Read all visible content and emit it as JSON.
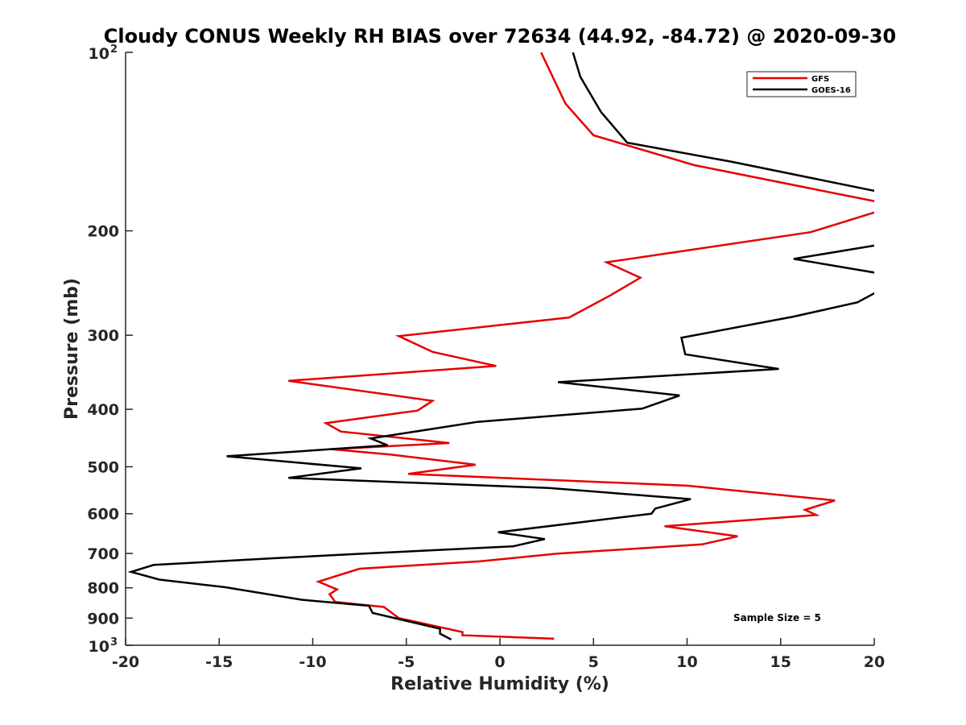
{
  "chart_data": {
    "type": "line",
    "title": "Cloudy CONUS Weekly RH BIAS over 72634 (44.92, -84.72) @ 2020-09-30",
    "xlabel": "Relative Humidity (%)",
    "ylabel": "Pressure (mb)",
    "xlim": [
      -20,
      20
    ],
    "ylim": [
      100,
      1000
    ],
    "y_scale": "log",
    "y_reversed": true,
    "grid": false,
    "x_ticks": [
      "-20",
      "-15",
      "-10",
      "-5",
      "0",
      "5",
      "10",
      "15",
      "20"
    ],
    "y_ticks": [
      {
        "value": 100,
        "base": "10",
        "exp": "2"
      },
      {
        "value": 200,
        "label": "200"
      },
      {
        "value": 300,
        "label": "300"
      },
      {
        "value": 400,
        "label": "400"
      },
      {
        "value": 500,
        "label": "500"
      },
      {
        "value": 600,
        "label": "600"
      },
      {
        "value": 700,
        "label": "700"
      },
      {
        "value": 800,
        "label": "800"
      },
      {
        "value": 900,
        "label": "900"
      },
      {
        "value": 1000,
        "base": "10",
        "exp": "3"
      }
    ],
    "legend": {
      "placement": "top-right"
    },
    "annotation": "Sample Size = 5",
    "series": [
      {
        "name": "GFS",
        "color": "#e60000",
        "points": [
          [
            2.9,
            975
          ],
          [
            -2,
            962
          ],
          [
            -2,
            950
          ],
          [
            -5.4,
            900
          ],
          [
            -6.2,
            862
          ],
          [
            -8.8,
            845
          ],
          [
            -9.1,
            820
          ],
          [
            -8.7,
            805
          ],
          [
            -9.7,
            781
          ],
          [
            -7.5,
            743
          ],
          [
            -1.1,
            722
          ],
          [
            3.0,
            701
          ],
          [
            10.8,
            676
          ],
          [
            12.7,
            655
          ],
          [
            8.8,
            630
          ],
          [
            16.9,
            603
          ],
          [
            16.3,
            591
          ],
          [
            17.9,
            570
          ],
          [
            10.0,
            538
          ],
          [
            -4.9,
            514
          ],
          [
            -1.3,
            496
          ],
          [
            -5.8,
            477
          ],
          [
            -9.0,
            467
          ],
          [
            -2.7,
            456
          ],
          [
            -8.5,
            436
          ],
          [
            -9.3,
            422
          ],
          [
            -4.4,
            402
          ],
          [
            -3.6,
            387
          ],
          [
            -11.3,
            358
          ],
          [
            -0.2,
            338
          ],
          [
            -3.6,
            320
          ],
          [
            -5.4,
            301
          ],
          [
            3.7,
            280
          ],
          [
            5.9,
            257
          ],
          [
            7.5,
            240
          ],
          [
            5.7,
            226
          ],
          [
            16.6,
            201
          ],
          [
            20.3,
            185
          ],
          [
            20.3,
            179
          ],
          [
            10.4,
            155
          ],
          [
            5.0,
            138
          ],
          [
            3.5,
            122
          ],
          [
            2.2,
            100
          ]
        ]
      },
      {
        "name": "GOES-16",
        "color": "#000000",
        "points": [
          [
            -2.6,
            978
          ],
          [
            -3.2,
            956
          ],
          [
            -3.2,
            938
          ],
          [
            -6.8,
            882
          ],
          [
            -7.0,
            858
          ],
          [
            -10.6,
            838
          ],
          [
            -14.7,
            798
          ],
          [
            -18.2,
            775
          ],
          [
            -19.7,
            752
          ],
          [
            -18.5,
            732
          ],
          [
            -12.0,
            713
          ],
          [
            -7.4,
            701
          ],
          [
            0.7,
            681
          ],
          [
            2.4,
            662
          ],
          [
            -0.1,
            645
          ],
          [
            4.7,
            618
          ],
          [
            8.1,
            600
          ],
          [
            8.3,
            588
          ],
          [
            10.2,
            567
          ],
          [
            2.6,
            543
          ],
          [
            -11.3,
            522
          ],
          [
            -7.4,
            503
          ],
          [
            -14.6,
            480
          ],
          [
            -6.0,
            460
          ],
          [
            -6.9,
            448
          ],
          [
            -1.2,
            420
          ],
          [
            7.6,
            399
          ],
          [
            9.6,
            379
          ],
          [
            3.1,
            360
          ],
          [
            14.9,
            342
          ],
          [
            9.9,
            323
          ],
          [
            9.7,
            303
          ],
          [
            15.7,
            279
          ],
          [
            19.1,
            264
          ],
          [
            20.3,
            252
          ],
          [
            20.3,
            236
          ],
          [
            15.7,
            223
          ],
          [
            20.3,
            211
          ],
          [
            20.3,
            172
          ],
          [
            12.4,
            153
          ],
          [
            6.8,
            142
          ],
          [
            5.4,
            126
          ],
          [
            4.3,
            110
          ],
          [
            3.9,
            100
          ]
        ]
      }
    ]
  }
}
